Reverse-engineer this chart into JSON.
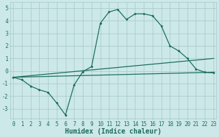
{
  "title": "",
  "xlabel": "Humidex (Indice chaleur)",
  "ylabel": "",
  "bg_color": "#cce8e8",
  "grid_color": "#aacccc",
  "line_color": "#1a6b5a",
  "x_ticks": [
    0,
    1,
    2,
    3,
    4,
    5,
    6,
    7,
    8,
    9,
    10,
    11,
    12,
    13,
    14,
    15,
    16,
    17,
    18,
    19,
    20,
    21,
    22,
    23
  ],
  "ylim": [
    -3.8,
    5.5
  ],
  "xlim": [
    -0.3,
    23.3
  ],
  "curve1_x": [
    0,
    1,
    2,
    3,
    4,
    5,
    6,
    7,
    8,
    9,
    10,
    11,
    12,
    13,
    14,
    15,
    16,
    17,
    18,
    19,
    20,
    21,
    22,
    23
  ],
  "curve1_y": [
    -0.5,
    -0.7,
    -1.2,
    -1.5,
    -1.7,
    -2.55,
    -3.5,
    -1.1,
    -0.05,
    0.35,
    3.8,
    4.7,
    4.9,
    4.1,
    4.55,
    4.55,
    4.4,
    3.6,
    2.0,
    1.6,
    1.0,
    0.15,
    -0.1,
    -0.15
  ],
  "curve2_x": [
    0,
    23
  ],
  "curve2_y": [
    -0.5,
    1.0
  ],
  "curve3_x": [
    0,
    23
  ],
  "curve3_y": [
    -0.5,
    -0.1
  ],
  "yticks": [
    -3,
    -2,
    -1,
    0,
    1,
    2,
    3,
    4,
    5
  ],
  "font_color": "#1a6b5a",
  "xlabel_fontsize": 7,
  "tick_fontsize": 5.5
}
